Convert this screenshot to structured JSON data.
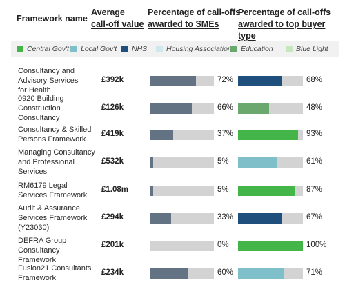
{
  "headers": {
    "framework": "Framework name",
    "avg_line1": "Average",
    "avg_line2": "call-off value",
    "sme_line1": "Percentage of call-offs",
    "sme_line2": "awarded to SMEs",
    "top_line1": "Percentage of call-offs",
    "top_line2": "awarded to top buyer type"
  },
  "legend": [
    {
      "label": "Central Gov't",
      "color": "#44b549"
    },
    {
      "label": "Local Gov't",
      "color": "#7fbfc9"
    },
    {
      "label": "NHS",
      "color": "#1f4f7d"
    },
    {
      "label": "Housing Association",
      "color": "#cfe8ec"
    },
    {
      "label": "Education",
      "color": "#6aa86e"
    },
    {
      "label": "Blue Light",
      "color": "#c6e7bd"
    }
  ],
  "colors": {
    "sme_fill": "#647383",
    "track": "#d3d3d3"
  },
  "chart_data": {
    "type": "bar",
    "categories": [
      "Consultancy and Advisory Services for Health",
      "0920 Building Construction Consultancy",
      "Consultancy & Skilled Persons Framework",
      "Managing Consultancy and Professional Services",
      "RM6179 Legal Services Framework",
      "Audit & Assurance Services Framework (Y23030)",
      "DEFRA Group Consultancy Framework",
      "Fusion21 Consultants Framework"
    ],
    "display_names": [
      "Consultancy and\nAdvisory Services\nfor Health",
      "0920 Building\nConstruction\nConsultancy",
      "Consultancy & Skilled\nPersons Framework",
      "Managing Consultancy\nand Professional\nServices",
      "RM6179 Legal\nServices Framework",
      "Audit & Assurance\nServices Framework\n(Y23030)",
      "DEFRA Group\nConsultancy Framework",
      "Fusion21 Consultants\nFramework"
    ],
    "average_call_off_value": [
      "£392k",
      "£126k",
      "£419k",
      "£532k",
      "£1.08m",
      "£294k",
      "£201k",
      "£234k"
    ],
    "series": [
      {
        "name": "Percentage of call-offs awarded to SMEs",
        "values": [
          72,
          66,
          37,
          5,
          5,
          33,
          0,
          60
        ],
        "labels": [
          "72%",
          "66%",
          "37%",
          "5%",
          "5%",
          "33%",
          "0%",
          "60%"
        ]
      },
      {
        "name": "Percentage of call-offs awarded to top buyer type",
        "values": [
          68,
          48,
          93,
          61,
          87,
          67,
          100,
          71
        ],
        "labels": [
          "68%",
          "48%",
          "93%",
          "61%",
          "87%",
          "67%",
          "100%",
          "71%"
        ],
        "buyer_type": [
          "NHS",
          "Education",
          "Central Gov't",
          "Local Gov't",
          "Central Gov't",
          "NHS",
          "Central Gov't",
          "Local Gov't"
        ]
      }
    ],
    "ylim": [
      0,
      100
    ]
  }
}
